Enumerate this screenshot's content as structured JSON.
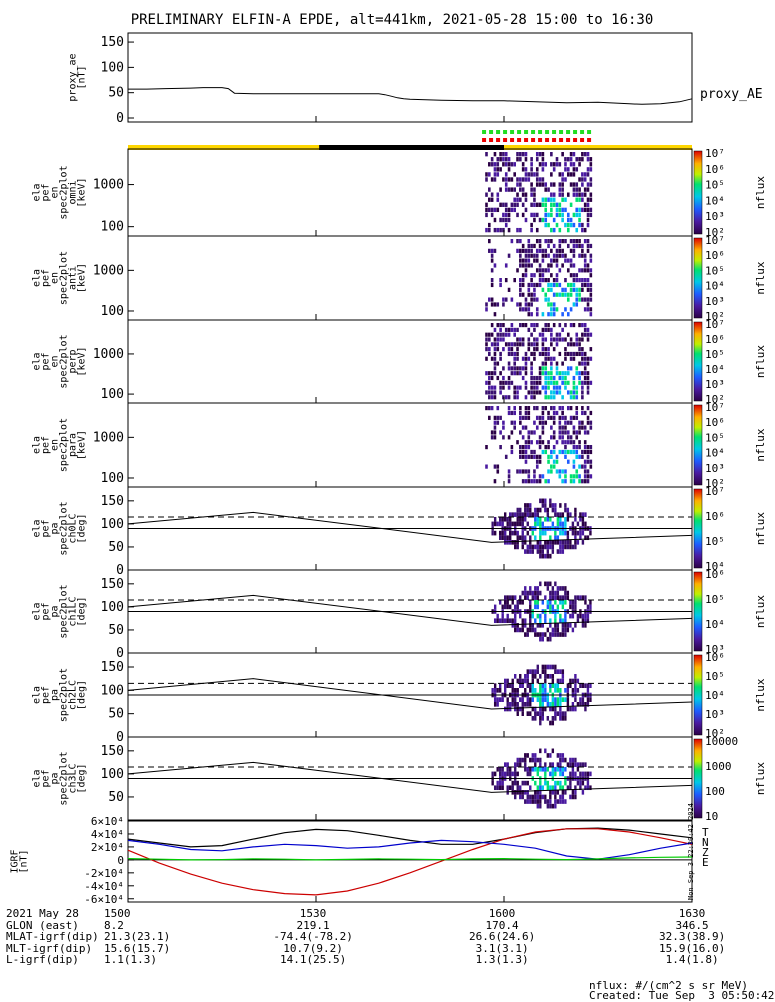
{
  "title": "PRELIMINARY ELFIN-A EPDE, alt=441km, 2021-05-28 15:00 to 16:30",
  "colors": {
    "background": "#ffffff",
    "axis": "#000000",
    "orbit_day": "#ffd700",
    "orbit_night": "#000000",
    "flag_green": "#22dd22",
    "flag_red": "#ee0000",
    "igrf_total": "#000000",
    "igrf_n": "#cc0000",
    "igrf_z": "#0000cc",
    "igrf_e": "#00cc00"
  },
  "time_axis": {
    "start_min": 0,
    "end_min": 90,
    "labels": [
      "1500",
      "1530",
      "1600",
      "1630"
    ],
    "tick_values_min": [
      0,
      30,
      60,
      90
    ]
  },
  "chart_data": [
    {
      "type": "line",
      "id": "proxy_ae",
      "ylabel": "proxy_ae\n[nT]",
      "yticks": [
        "0",
        "50",
        "100",
        "150"
      ],
      "ylim": [
        0,
        160
      ],
      "series": [
        {
          "name": "proxy_AE",
          "x": [
            0,
            3,
            6,
            10,
            12,
            15,
            16,
            17,
            20,
            25,
            30,
            35,
            40,
            41,
            42,
            43,
            44,
            45,
            50,
            55,
            60,
            65,
            70,
            75,
            80,
            82,
            85,
            88,
            90
          ],
          "y": [
            57,
            57,
            58,
            59,
            60,
            60,
            58,
            49,
            48,
            48,
            48,
            48,
            48,
            46,
            43,
            40,
            38,
            37,
            35,
            34,
            34,
            32,
            30,
            31,
            28,
            27,
            28,
            32,
            38
          ]
        }
      ]
    },
    {
      "type": "line",
      "id": "orbit_bar",
      "segments": [
        {
          "from": 0,
          "to": 30.5,
          "color": "#ffd700"
        },
        {
          "from": 30.5,
          "to": 60,
          "color": "#000000"
        },
        {
          "from": 60,
          "to": 90,
          "color": "#ffd700"
        }
      ],
      "flags": [
        {
          "from": 56.5,
          "to": 74,
          "color": "#22dd22"
        },
        {
          "from": 56.5,
          "to": 74,
          "color": "#ee0000"
        }
      ]
    },
    {
      "type": "heatmap",
      "id": "omni",
      "ylabel": "ela\npef\nen\nspec2plot\nomni\n[keV]",
      "yticks": [
        "100",
        "1000"
      ],
      "log_y": true,
      "ylim": [
        60,
        7000
      ],
      "cbar_label": "nflux",
      "cbar_ticks": [
        "10²",
        "10³",
        "10⁴",
        "10⁵",
        "10⁶",
        "10⁷"
      ]
    },
    {
      "type": "heatmap",
      "id": "anti",
      "ylabel": "ela\npef\nen\nspec2plot\nanti\n[keV]",
      "yticks": [
        "100",
        "1000"
      ],
      "log_y": true,
      "ylim": [
        60,
        7000
      ],
      "cbar_label": "nflux",
      "cbar_ticks": [
        "10²",
        "10³",
        "10⁴",
        "10⁵",
        "10⁶",
        "10⁷"
      ]
    },
    {
      "type": "heatmap",
      "id": "perp",
      "ylabel": "ela\npef\nen\nspec2plot\nperp\n[keV]",
      "yticks": [
        "100",
        "1000"
      ],
      "log_y": true,
      "ylim": [
        60,
        7000
      ],
      "cbar_label": "nflux",
      "cbar_ticks": [
        "10²",
        "10³",
        "10⁴",
        "10⁵",
        "10⁶",
        "10⁷"
      ]
    },
    {
      "type": "heatmap",
      "id": "para",
      "ylabel": "ela\npef\nen\nspec2plot\npara\n[keV]",
      "yticks": [
        "100",
        "1000"
      ],
      "log_y": true,
      "ylim": [
        60,
        7000
      ],
      "cbar_label": "nflux",
      "cbar_ticks": [
        "10²",
        "10³",
        "10⁴",
        "10⁵",
        "10⁶",
        "10⁷"
      ]
    },
    {
      "type": "heatmap",
      "id": "ch0",
      "ylabel": "ela\npef\npa\nspec2plot\nch0LC\n[deg]",
      "yticks": [
        "0",
        "50",
        "100",
        "150"
      ],
      "ylim": [
        0,
        180
      ],
      "cbar_label": "nflux",
      "cbar_ticks": [
        "10⁴",
        "10⁵",
        "10⁶",
        "10⁷"
      ]
    },
    {
      "type": "heatmap",
      "id": "ch1",
      "ylabel": "ela\npef\npa\nspec2plot\nch1LC\n[deg]",
      "yticks": [
        "0",
        "50",
        "100",
        "150"
      ],
      "ylim": [
        0,
        180
      ],
      "cbar_label": "nflux",
      "cbar_ticks": [
        "10³",
        "10⁴",
        "10⁵",
        "10⁶"
      ]
    },
    {
      "type": "heatmap",
      "id": "ch2",
      "ylabel": "ela\npef\npa\nspec2plot\nch2LC\n[deg]",
      "yticks": [
        "0",
        "50",
        "100",
        "150"
      ],
      "ylim": [
        0,
        180
      ],
      "cbar_label": "nflux",
      "cbar_ticks": [
        "10²",
        "10³",
        "10⁴",
        "10⁵",
        "10⁶"
      ]
    },
    {
      "type": "heatmap",
      "id": "ch3",
      "ylabel": "ela\npef\npa\nspec2plot\nch3LC\n[deg]",
      "yticks": [
        "50",
        "100",
        "150"
      ],
      "ylim": [
        0,
        180
      ],
      "cbar_label": "nflux",
      "cbar_ticks": [
        "10",
        "100",
        "1000",
        "10000"
      ]
    },
    {
      "type": "line",
      "id": "igrf",
      "ylabel": "IGRF\n[nT]",
      "ylim": [
        -65000,
        60000
      ],
      "yticks": [
        "-6×10⁴",
        "-4×10⁴",
        "-2×10⁴",
        "0",
        "2×10⁴",
        "4×10⁴",
        "6×10⁴"
      ],
      "series": [
        {
          "name": "T",
          "x": [
            0,
            5,
            10,
            15,
            20,
            25,
            30,
            35,
            40,
            45,
            50,
            55,
            60,
            65,
            70,
            75,
            80,
            85,
            90
          ],
          "y": [
            32000,
            26000,
            20000,
            22000,
            32000,
            42000,
            47000,
            45000,
            38000,
            30000,
            24000,
            24000,
            32000,
            42000,
            48000,
            49000,
            46000,
            40000,
            34000
          ]
        },
        {
          "name": "N",
          "x": [
            0,
            5,
            10,
            15,
            20,
            25,
            30,
            35,
            40,
            45,
            50,
            55,
            60,
            65,
            70,
            75,
            80,
            85,
            90
          ],
          "y": [
            15000,
            -5000,
            -22000,
            -36000,
            -46000,
            -52000,
            -54000,
            -48000,
            -36000,
            -20000,
            -2000,
            16000,
            32000,
            43000,
            48000,
            48000,
            43000,
            34000,
            24000
          ]
        },
        {
          "name": "Z",
          "x": [
            0,
            5,
            10,
            15,
            20,
            25,
            30,
            35,
            40,
            45,
            50,
            55,
            60,
            65,
            70,
            75,
            80,
            85,
            90
          ],
          "y": [
            30000,
            24000,
            16000,
            14000,
            20000,
            24000,
            22000,
            18000,
            20000,
            26000,
            30000,
            28000,
            24000,
            18000,
            6000,
            1000,
            8000,
            18000,
            26000
          ]
        },
        {
          "name": "E",
          "x": [
            0,
            5,
            10,
            15,
            20,
            25,
            30,
            35,
            40,
            45,
            50,
            55,
            60,
            65,
            70,
            75,
            80,
            85,
            90
          ],
          "y": [
            2000,
            1000,
            0,
            500,
            1500,
            1000,
            0,
            800,
            1500,
            1000,
            500,
            1500,
            2000,
            1000,
            500,
            1500,
            3000,
            4000,
            4500
          ]
        }
      ],
      "side_label": "Mon Sep  3 22:30:42 2024"
    }
  ],
  "footer": {
    "rows": [
      {
        "label": "2021 May 28",
        "values": [
          "1500",
          "1530",
          "1600",
          "1630"
        ]
      },
      {
        "label": "GLON (east)",
        "values": [
          "8.2",
          "219.1",
          "170.4",
          "346.5"
        ]
      },
      {
        "label": "MLAT-igrf(dip)",
        "values": [
          "21.3(23.1)",
          "-74.4(-78.2)",
          "26.6(24.6)",
          "32.3(38.9)"
        ]
      },
      {
        "label": "MLT-igrf(dip)",
        "values": [
          "15.6(15.7)",
          "10.7(9.2)",
          "3.1(3.1)",
          "15.9(16.0)"
        ]
      },
      {
        "label": "L-igrf(dip)",
        "values": [
          "1.1(1.3)",
          "14.1(25.5)",
          "1.3(1.3)",
          "1.4(1.8)"
        ]
      }
    ],
    "nflux_units": "nflux: #/(cm^2 s sr MeV)",
    "created": "Created: Tue Sep  3 05:50:42 2024"
  }
}
